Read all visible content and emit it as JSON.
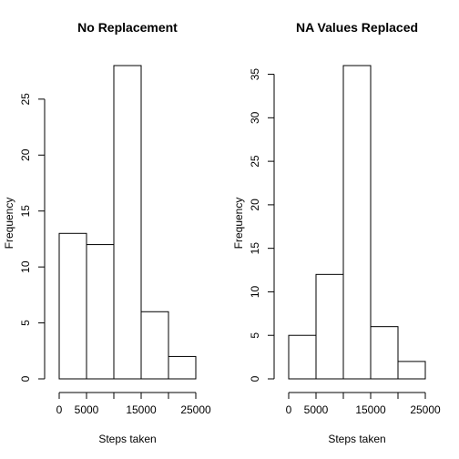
{
  "chart_data": [
    {
      "type": "bar",
      "title": "No Replacement",
      "xlabel": "Steps taken",
      "ylabel": "Frequency",
      "bins": [
        {
          "from": 0,
          "to": 5000,
          "value": 13
        },
        {
          "from": 5000,
          "to": 10000,
          "value": 12
        },
        {
          "from": 10000,
          "to": 15000,
          "value": 28
        },
        {
          "from": 15000,
          "to": 20000,
          "value": 6
        },
        {
          "from": 20000,
          "to": 25000,
          "value": 2
        }
      ],
      "xlim": [
        0,
        25000
      ],
      "ylim": [
        0,
        28
      ],
      "xticks": [
        0,
        5000,
        10000,
        15000,
        20000,
        25000
      ],
      "xtick_labels": [
        "0",
        "5000",
        "",
        "15000",
        "",
        "25000"
      ],
      "yticks": [
        0,
        5,
        10,
        15,
        20,
        25
      ],
      "ytick_labels": [
        "0",
        "5",
        "10",
        "15",
        "20",
        "25"
      ],
      "grid": false
    },
    {
      "type": "bar",
      "title": "NA Values Replaced",
      "xlabel": "Steps taken",
      "ylabel": "Frequency",
      "bins": [
        {
          "from": 0,
          "to": 5000,
          "value": 5
        },
        {
          "from": 5000,
          "to": 10000,
          "value": 12
        },
        {
          "from": 10000,
          "to": 15000,
          "value": 36
        },
        {
          "from": 15000,
          "to": 20000,
          "value": 6
        },
        {
          "from": 20000,
          "to": 25000,
          "value": 2
        }
      ],
      "xlim": [
        0,
        25000
      ],
      "ylim": [
        0,
        36
      ],
      "xticks": [
        0,
        5000,
        10000,
        15000,
        20000,
        25000
      ],
      "xtick_labels": [
        "0",
        "5000",
        "",
        "15000",
        "",
        "25000"
      ],
      "yticks": [
        0,
        5,
        10,
        15,
        20,
        25,
        30,
        35
      ],
      "ytick_labels": [
        "0",
        "5",
        "10",
        "15",
        "20",
        "25",
        "30",
        "35"
      ],
      "grid": false
    }
  ]
}
